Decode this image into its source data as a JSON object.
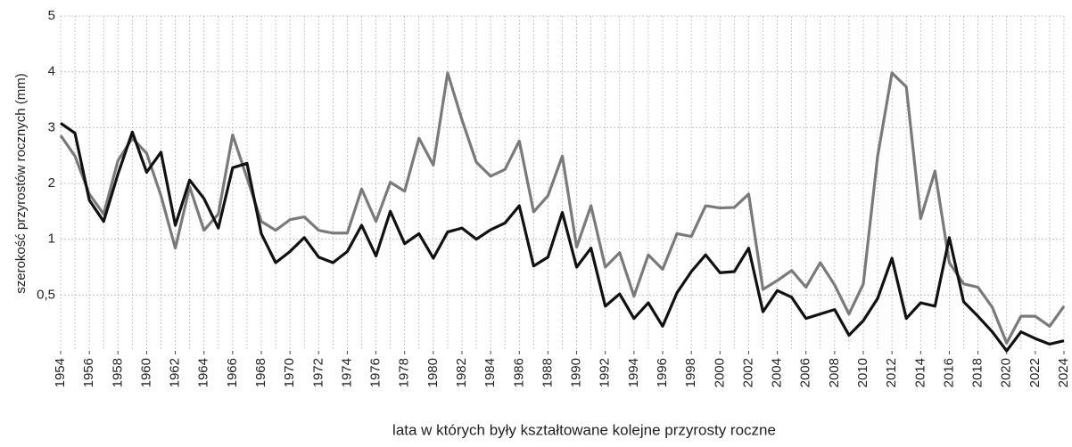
{
  "chart_data": {
    "type": "line",
    "x_label": "lata w których były kształtowane kolejne przyrosty roczne",
    "y_label": "szerokość przyrostów rocznych (mm)",
    "x": [
      1954,
      1955,
      1956,
      1957,
      1958,
      1959,
      1960,
      1961,
      1962,
      1963,
      1964,
      1965,
      1966,
      1967,
      1968,
      1969,
      1970,
      1971,
      1972,
      1973,
      1974,
      1975,
      1976,
      1977,
      1978,
      1979,
      1980,
      1981,
      1982,
      1983,
      1984,
      1985,
      1986,
      1987,
      1988,
      1989,
      1990,
      1991,
      1992,
      1993,
      1994,
      1995,
      1996,
      1997,
      1998,
      1999,
      2000,
      2001,
      2002,
      2003,
      2004,
      2005,
      2006,
      2007,
      2008,
      2009,
      2010,
      2011,
      2012,
      2013,
      2014,
      2015,
      2016,
      2017,
      2018,
      2019,
      2020,
      2021,
      2022,
      2023,
      2024
    ],
    "series": [
      {
        "color": "#111111",
        "values": [
          3.08,
          2.9,
          1.7,
          1.32,
          2.17,
          2.92,
          2.2,
          2.56,
          1.25,
          2.06,
          1.73,
          1.2,
          2.28,
          2.36,
          1.1,
          0.79,
          0.89,
          1.03,
          0.84,
          0.79,
          0.89,
          1.25,
          0.85,
          1.5,
          0.96,
          1.1,
          0.83,
          1.13,
          1.2,
          1.0,
          1.17,
          1.29,
          1.6,
          0.76,
          0.84,
          1.48,
          0.75,
          0.92,
          0.4,
          0.51,
          0.29,
          0.43,
          0.22,
          0.52,
          0.71,
          0.86,
          0.7,
          0.71,
          0.92,
          0.35,
          0.54,
          0.48,
          0.29,
          0.33,
          0.37,
          0.14,
          0.27,
          0.47,
          0.83,
          0.29,
          0.43,
          0.4,
          1.03,
          0.44,
          0.31,
          0.17,
          0.0,
          0.17,
          0.11,
          0.06,
          0.09
        ]
      },
      {
        "color": "#7a7a7a",
        "values": [
          2.86,
          2.49,
          1.81,
          1.45,
          2.41,
          2.81,
          2.54,
          1.78,
          0.92,
          1.94,
          1.16,
          1.45,
          2.87,
          2.1,
          1.32,
          1.16,
          1.35,
          1.4,
          1.16,
          1.11,
          1.11,
          1.9,
          1.32,
          2.02,
          1.86,
          2.81,
          2.33,
          3.98,
          3.14,
          2.38,
          2.13,
          2.25,
          2.76,
          1.49,
          1.78,
          2.49,
          0.93,
          1.6,
          0.75,
          0.88,
          0.49,
          0.86,
          0.73,
          1.1,
          1.05,
          1.6,
          1.56,
          1.57,
          1.81,
          0.55,
          0.63,
          0.72,
          0.57,
          0.79,
          0.59,
          0.33,
          0.6,
          2.49,
          3.98,
          3.73,
          1.37,
          2.22,
          0.79,
          0.6,
          0.57,
          0.39,
          0.07,
          0.31,
          0.31,
          0.22,
          0.4
        ]
      }
    ],
    "xlim": [
      1954,
      2024
    ],
    "xticks": [
      1954,
      1956,
      1958,
      1960,
      1962,
      1964,
      1966,
      1968,
      1970,
      1972,
      1974,
      1976,
      1978,
      1980,
      1982,
      1984,
      1986,
      1988,
      1990,
      1992,
      1994,
      1996,
      1998,
      2000,
      2002,
      2004,
      2006,
      2008,
      2010,
      2012,
      2014,
      2016,
      2018,
      2020,
      2022,
      2024
    ],
    "ylim": [
      0,
      5
    ],
    "yticks": [
      {
        "value": 0.5,
        "label": "0,5"
      },
      1,
      2,
      3,
      4,
      5
    ],
    "y_scale": "equal-tick-spacing",
    "grid": true
  }
}
